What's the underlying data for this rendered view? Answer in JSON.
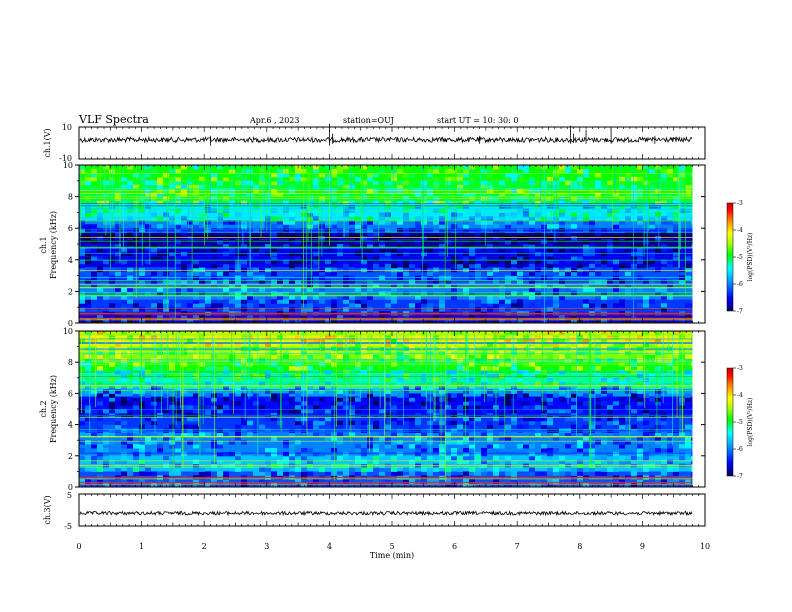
{
  "header": {
    "title": "VLF Spectra",
    "date": "Apr.6  , 2023",
    "station": "station=OUJ",
    "start_time": "start  UT  =   10: 30: 0"
  },
  "chart_data": [
    {
      "id": "ch1-waveform",
      "type": "line",
      "ylabel": "ch.1(V)",
      "ylim": [
        -10,
        10
      ],
      "yticks": [
        "10",
        "-10"
      ],
      "x": [
        0,
        1,
        2,
        3,
        4,
        5,
        6,
        7,
        8,
        9,
        9.8
      ],
      "values": [
        2,
        2,
        2,
        2,
        2,
        2,
        2,
        2,
        2,
        2,
        2
      ],
      "color": "#000000"
    },
    {
      "id": "ch1-spectrogram",
      "type": "heatmap",
      "ylabel": "ch.1\nFrequency (kHz)",
      "ylabel_line1": "ch.1",
      "ylabel_line2": "Frequency (kHz)",
      "ylim": [
        0,
        10
      ],
      "yticks": [
        "0",
        "2",
        "4",
        "6",
        "8",
        "10"
      ],
      "bands_khz": [
        {
          "f": [
            9.0,
            10.0
          ],
          "level": -4.9
        },
        {
          "f": [
            7.5,
            9.0
          ],
          "level": -5.0
        },
        {
          "f": [
            6.5,
            7.5
          ],
          "level": -5.5
        },
        {
          "f": [
            6.0,
            6.5
          ],
          "level": -6.0
        },
        {
          "f": [
            5.7,
            6.0
          ],
          "level": -6.4
        },
        {
          "f": [
            5.3,
            5.7
          ],
          "level": -6.9
        },
        {
          "f": [
            4.8,
            5.3
          ],
          "level": -6.8
        },
        {
          "f": [
            3.5,
            4.8
          ],
          "level": -6.6
        },
        {
          "f": [
            2.5,
            3.5
          ],
          "level": -6.2
        },
        {
          "f": [
            1.5,
            2.5
          ],
          "level": -6.0
        },
        {
          "f": [
            0.5,
            1.5
          ],
          "level": -6.3
        },
        {
          "f": [
            0.0,
            0.5
          ],
          "level": -6.6
        }
      ],
      "colorbar": {
        "label": "log(PSD)(V²/Hz)",
        "range": [
          -7,
          -3
        ],
        "ticks": [
          "-3",
          "-4",
          "-5",
          "-6",
          "-7"
        ]
      }
    },
    {
      "id": "ch2-spectrogram",
      "type": "heatmap",
      "ylabel": "ch.2\nFrequency (kHz)",
      "ylabel_line1": "ch.2",
      "ylabel_line2": "Frequency (kHz)",
      "ylim": [
        0,
        10
      ],
      "yticks": [
        "0",
        "2",
        "4",
        "6",
        "8",
        "10"
      ],
      "bands_khz": [
        {
          "f": [
            9.0,
            10.0
          ],
          "level": -4.3
        },
        {
          "f": [
            8.0,
            9.0
          ],
          "level": -4.6
        },
        {
          "f": [
            7.3,
            8.0
          ],
          "level": -4.9
        },
        {
          "f": [
            6.3,
            7.3
          ],
          "level": -5.2
        },
        {
          "f": [
            5.8,
            6.3
          ],
          "level": -5.9
        },
        {
          "f": [
            4.5,
            5.8
          ],
          "level": -6.5
        },
        {
          "f": [
            3.5,
            4.5
          ],
          "level": -6.3
        },
        {
          "f": [
            2.0,
            3.5
          ],
          "level": -6.0
        },
        {
          "f": [
            1.0,
            2.0
          ],
          "level": -5.7
        },
        {
          "f": [
            0.0,
            1.0
          ],
          "level": -6.2
        }
      ],
      "colorbar": {
        "label": "log(PSD)(V²/Hz)",
        "range": [
          -7,
          -3
        ],
        "ticks": [
          "-3",
          "-4",
          "-5",
          "-6",
          "-7"
        ]
      }
    },
    {
      "id": "ch3-waveform",
      "type": "line",
      "ylabel": "ch.3(V)",
      "ylim": [
        -5,
        5
      ],
      "yticks": [
        "5",
        "-5"
      ],
      "x": [
        0,
        1,
        2,
        3,
        4,
        5,
        6,
        7,
        8,
        9,
        9.8
      ],
      "values": [
        -1,
        -1,
        -1,
        -1,
        -1,
        -1,
        -1,
        -1,
        -1,
        -1,
        -1
      ],
      "color": "#000000"
    }
  ],
  "x_axis": {
    "label": "Time  (min)",
    "range": [
      0,
      10
    ],
    "ticks": [
      "0",
      "1",
      "2",
      "3",
      "4",
      "5",
      "6",
      "7",
      "8",
      "9",
      "10"
    ]
  },
  "colors": {
    "colormap": [
      "#000060",
      "#0000ff",
      "#00a0ff",
      "#00ffff",
      "#00ff00",
      "#a0ff00",
      "#ffff00",
      "#ff8000",
      "#ff0000",
      "#c00000"
    ]
  }
}
